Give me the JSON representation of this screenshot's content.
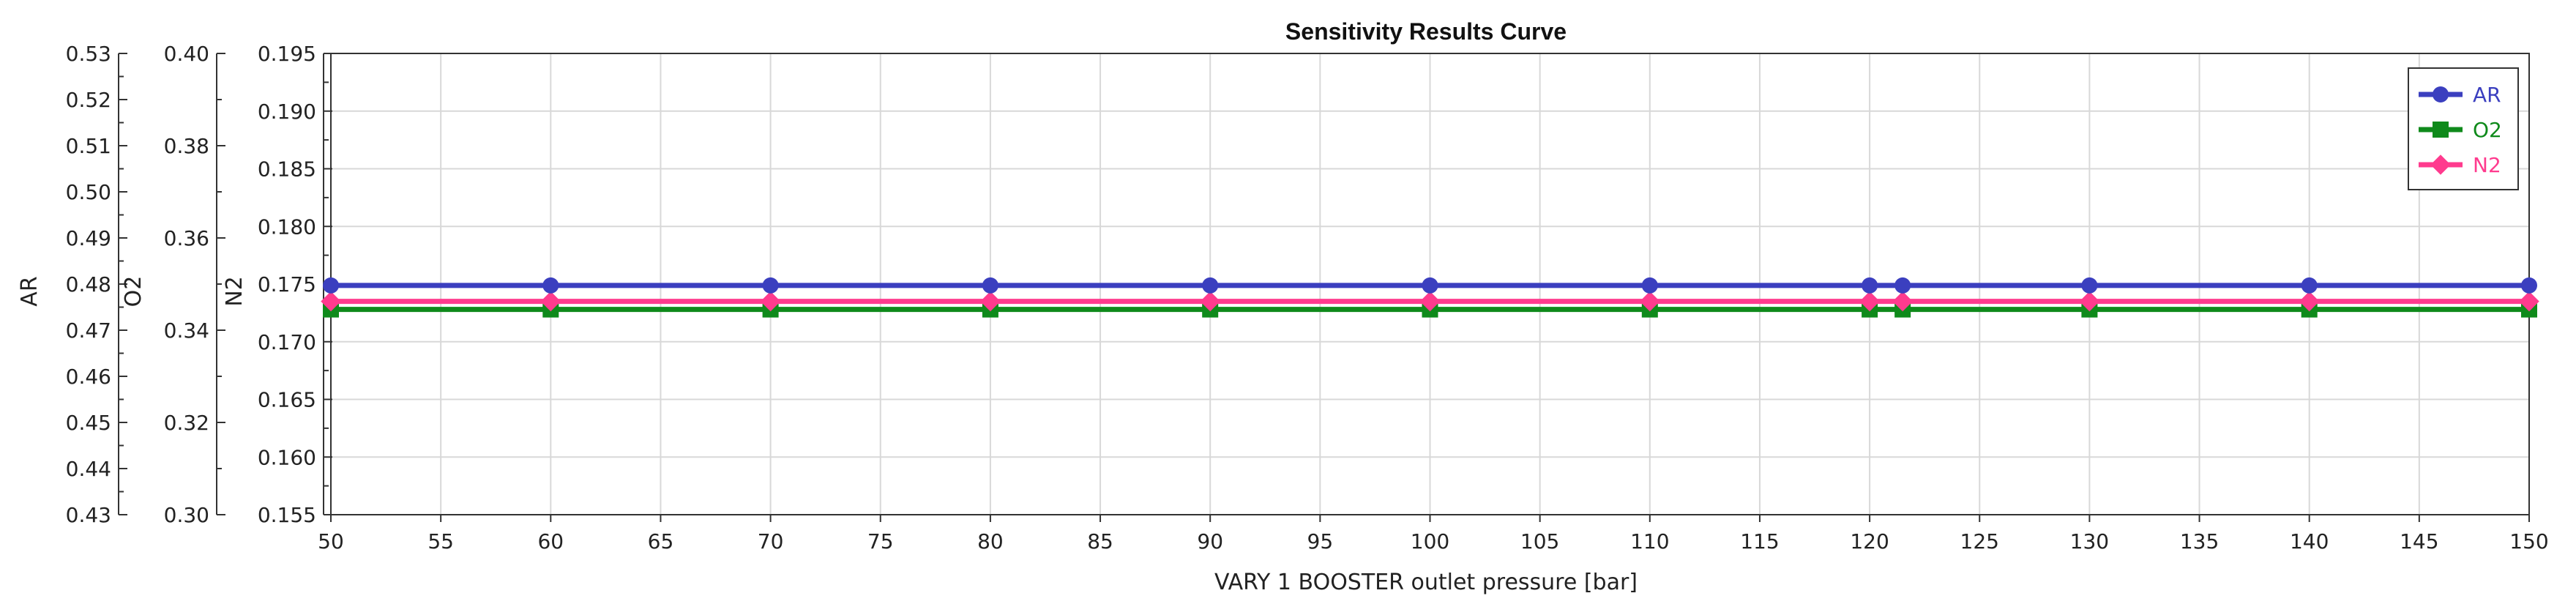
{
  "chart_data": {
    "type": "line",
    "title": "Sensitivity Results Curve",
    "xlabel": "VARY  1 BOOSTER outlet pressure [bar]",
    "x": [
      50,
      60,
      70,
      80,
      90,
      100,
      110,
      120,
      121.5,
      130,
      140,
      150
    ],
    "xlim": [
      50,
      150
    ],
    "xticks": [
      50,
      55,
      60,
      65,
      70,
      75,
      80,
      85,
      90,
      95,
      100,
      105,
      110,
      115,
      120,
      125,
      130,
      135,
      140,
      145,
      150
    ],
    "grid": true,
    "legend_position": "top-right",
    "y_axes": [
      {
        "label": "AR",
        "ylim": [
          0.43,
          0.53
        ],
        "ticks": [
          0.43,
          0.44,
          0.45,
          0.46,
          0.47,
          0.48,
          0.49,
          0.5,
          0.51,
          0.52,
          0.53
        ],
        "tick_labels": [
          "0.43",
          "0.44",
          "0.45",
          "0.46",
          "0.47",
          "0.48",
          "0.49",
          "0.50",
          "0.51",
          "0.52",
          "0.53"
        ]
      },
      {
        "label": "O2",
        "ylim": [
          0.3,
          0.4
        ],
        "ticks": [
          0.3,
          0.32,
          0.34,
          0.36,
          0.38,
          0.4
        ],
        "tick_labels": [
          "0.30",
          "0.32",
          "0.34",
          "0.36",
          "0.38",
          "0.40"
        ]
      },
      {
        "label": "N2",
        "ylim": [
          0.155,
          0.195
        ],
        "ticks": [
          0.155,
          0.16,
          0.165,
          0.17,
          0.175,
          0.18,
          0.185,
          0.19,
          0.195
        ],
        "tick_labels": [
          "0.155",
          "0.160",
          "0.165",
          "0.170",
          "0.175",
          "0.180",
          "0.185",
          "0.190",
          "0.195"
        ]
      }
    ],
    "series": [
      {
        "name": "AR",
        "axis": 0,
        "color": "#3b3fbf",
        "marker": "circle",
        "values": [
          0.4797,
          0.4797,
          0.4797,
          0.4797,
          0.4797,
          0.4797,
          0.4797,
          0.4797,
          0.4797,
          0.4797,
          0.4797,
          0.4797
        ]
      },
      {
        "name": "O2",
        "axis": 1,
        "color": "#0f8a1b",
        "marker": "square",
        "values": [
          0.3445,
          0.3445,
          0.3445,
          0.3445,
          0.3445,
          0.3445,
          0.3445,
          0.3445,
          0.3445,
          0.3445,
          0.3445,
          0.3445
        ]
      },
      {
        "name": "N2",
        "axis": 2,
        "color": "#ff3b8e",
        "marker": "diamond",
        "values": [
          0.1735,
          0.1735,
          0.1735,
          0.1735,
          0.1735,
          0.1735,
          0.1735,
          0.1735,
          0.1735,
          0.1735,
          0.1735,
          0.1735
        ]
      }
    ]
  }
}
